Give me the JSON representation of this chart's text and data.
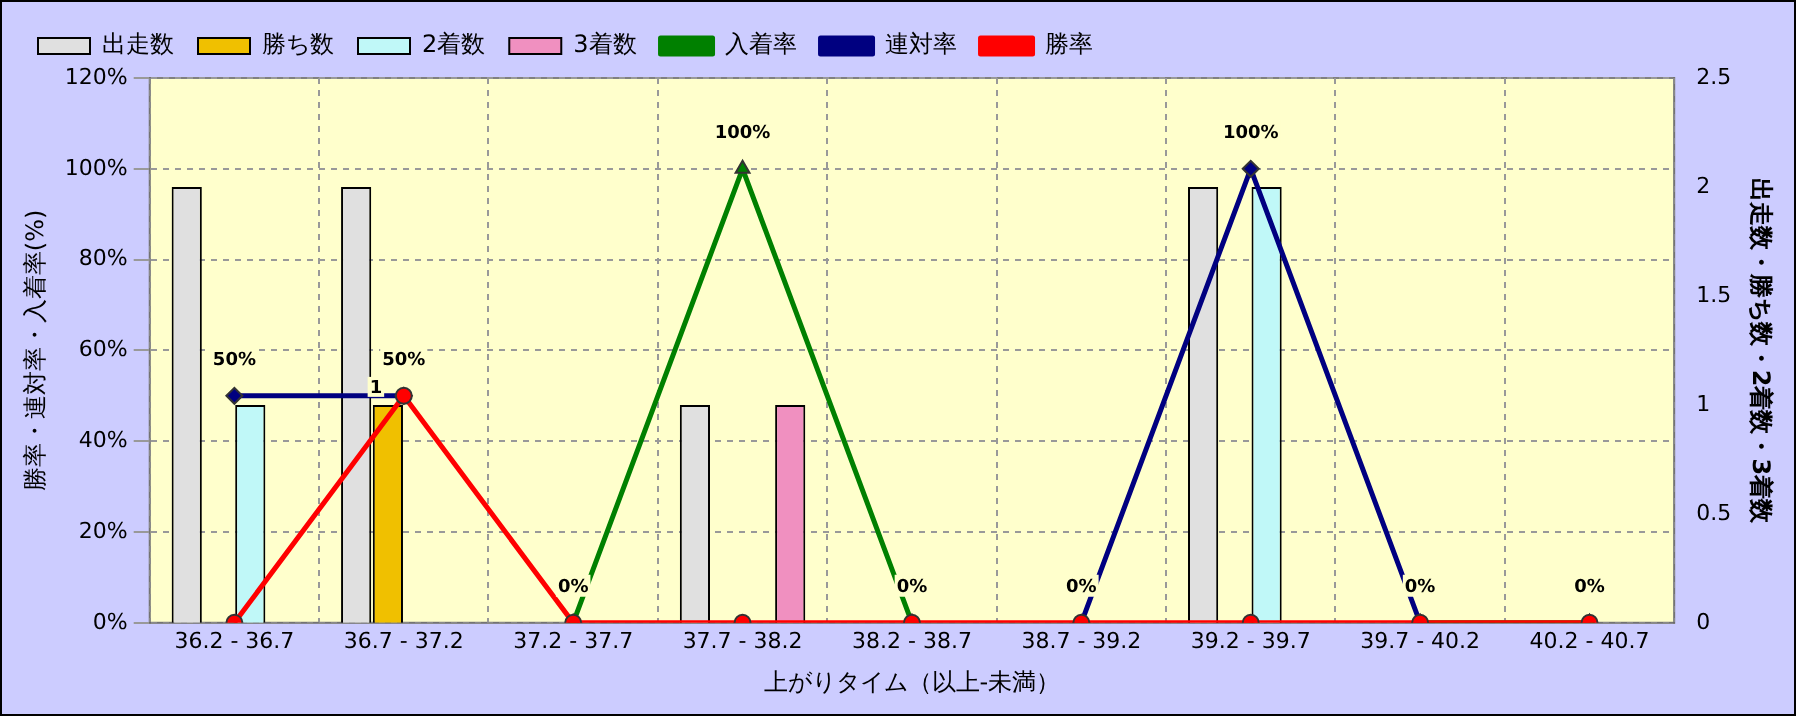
{
  "chart_data": {
    "type": "bar",
    "xlabel": "上がりタイム（以上-未満）",
    "ylabel": "勝率・連対率・入着率(%)",
    "y2label": "出走数・勝ち数・2着数・3着数",
    "categories": [
      "36.2 - 36.7",
      "36.7 - 37.2",
      "37.2 - 37.7",
      "37.7 - 38.2",
      "38.2 - 38.7",
      "38.7 - 39.2",
      "39.2 - 39.7",
      "39.7 - 40.2",
      "40.2 - 40.7"
    ],
    "series": [
      {
        "name": "出走数",
        "axis": "y2",
        "color": "#e0e0e0",
        "values": [
          2,
          2,
          0,
          1,
          0,
          0,
          2,
          0,
          0
        ]
      },
      {
        "name": "勝ち数",
        "axis": "y2",
        "color": "#f0c000",
        "values": [
          0,
          1,
          0,
          0,
          0,
          0,
          0,
          0,
          0
        ],
        "value_labels": [
          null,
          "1",
          null,
          null,
          null,
          null,
          null,
          null,
          null
        ]
      },
      {
        "name": "2着数",
        "axis": "y2",
        "color": "#c0f8f8",
        "values": [
          1,
          0,
          0,
          0,
          0,
          0,
          2,
          0,
          0
        ]
      },
      {
        "name": "3着数",
        "axis": "y2",
        "color": "#f090c0",
        "values": [
          0,
          0,
          0,
          1,
          0,
          0,
          0,
          0,
          0
        ]
      },
      {
        "name": "入着率",
        "type": "line",
        "marker": "triangle",
        "color": "#008000",
        "values": [
          null,
          null,
          0,
          100,
          0,
          null,
          null,
          0,
          0
        ],
        "value_labels": [
          null,
          null,
          "0%",
          "100%",
          "0%",
          null,
          null,
          "0%",
          "0%"
        ]
      },
      {
        "name": "連対率",
        "type": "line",
        "marker": "diamond",
        "color": "#000080",
        "values": [
          50,
          50,
          null,
          null,
          null,
          0,
          100,
          0,
          null
        ],
        "value_labels": [
          "50%",
          "50%",
          null,
          null,
          null,
          "0%",
          "100%",
          null,
          null
        ]
      },
      {
        "name": "勝率",
        "type": "line",
        "marker": "circle",
        "color": "#ff0000",
        "values": [
          0,
          50,
          0,
          0,
          0,
          0,
          0,
          0,
          0
        ]
      }
    ],
    "ylim": [
      0,
      120
    ],
    "yticks": [
      {
        "value": 0,
        "label": "0%"
      },
      {
        "value": 20,
        "label": "20%"
      },
      {
        "value": 40,
        "label": "40%"
      },
      {
        "value": 60,
        "label": "60%"
      },
      {
        "value": 80,
        "label": "80%"
      },
      {
        "value": 100,
        "label": "100%"
      },
      {
        "value": 120,
        "label": "120%"
      }
    ],
    "y2lim": [
      0,
      2.5
    ],
    "y2ticks": [
      0,
      0.5,
      1,
      1.5,
      2,
      2.5
    ],
    "grid": true,
    "legend": "top"
  }
}
